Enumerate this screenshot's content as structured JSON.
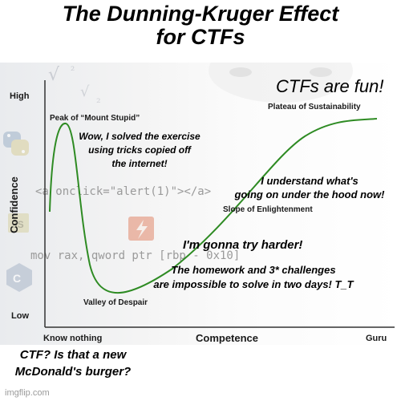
{
  "meme": {
    "title_line1": "The Dunning-Kruger Effect",
    "title_line2": "for CTFs",
    "watermark": "imgflip.com"
  },
  "background": {
    "code_line1": "<a onclick=\"alert(1)\"></a>",
    "code_line2": "mov rax, qword ptr [rbp - 0x10]",
    "math_glyphs": [
      "√",
      "²",
      "√",
      "₂"
    ]
  },
  "chart": {
    "y_high": "High",
    "y_low": "Low",
    "y_label": "Confidence",
    "x_left": "Know nothing",
    "x_right": "Guru",
    "x_label": "Competence",
    "labels": {
      "peak": "Peak of “Mount Stupid”",
      "plateau": "Plateau of Sustainability",
      "slope": "Slope of Enlightenment",
      "valley": "Valley of Despair"
    },
    "curve_color": "#2e8b23",
    "axis_color": "#333333"
  },
  "captions": {
    "fun": "CTFs are fun!",
    "solved_line1": "Wow, I solved the exercise",
    "solved_line2": "using tricks copied off",
    "solved_line3": "the internet!",
    "understand_line1": "I understand what's",
    "understand_line2": "going on under the hood now!",
    "try_harder": "I'm gonna try harder!",
    "homework_line1": "The homework and 3* challenges",
    "homework_line2": "are impossible to solve in two days! T_T",
    "mcdonalds_line1": "CTF? Is that a new",
    "mcdonalds_line2": "McDonald's burger?"
  }
}
